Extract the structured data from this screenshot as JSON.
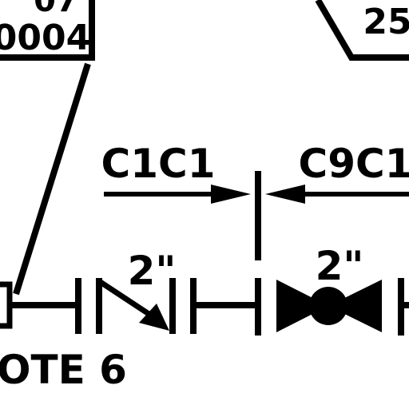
{
  "labels": {
    "tag_top_partial": "07",
    "tag_bottom_partial": "0004",
    "tag_right_partial": "25",
    "spec_left": "C1C1",
    "spec_right": "C9C1",
    "size_left": "2\"",
    "size_right": "2\"",
    "note": "OTE 6"
  },
  "colors": {
    "ink": "#000000",
    "paper": "#ffffff"
  }
}
